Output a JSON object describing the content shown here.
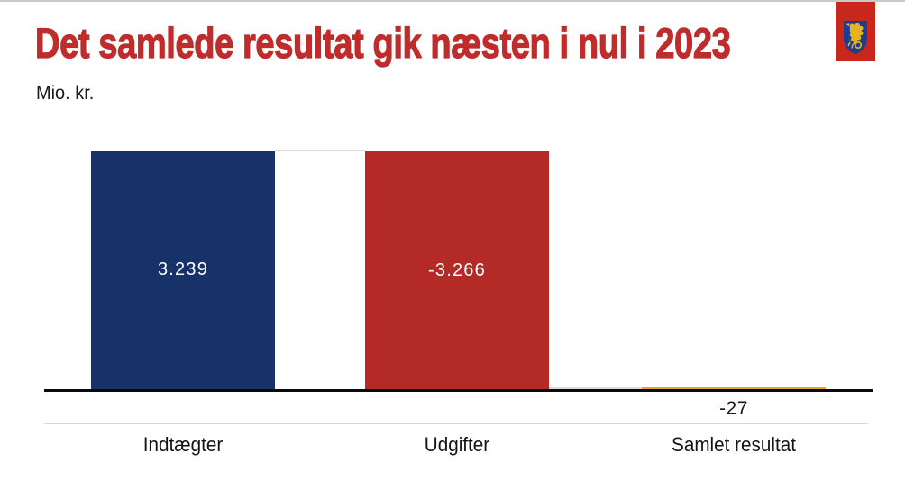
{
  "page": {
    "top_border_color": "#c9c9c9",
    "background_color": "#ffffff"
  },
  "header": {
    "logo": {
      "name": "municipal-coat-of-arms",
      "banner_color": "#c8271b",
      "shield_color": "#1e3d8f",
      "griffin_color": "#e7b41e"
    }
  },
  "chart_data": {
    "type": "waterfall",
    "title": "Det samlede resultat gik næsten i nul i 2023",
    "title_color": "#bf2c2b",
    "unit_label": "Mio. kr.",
    "categories": [
      "Indtægter",
      "Udgifter",
      "Samlet resultat"
    ],
    "values": [
      3239,
      -3266,
      -27
    ],
    "value_labels": [
      "3.239",
      "-3.266",
      "-27"
    ],
    "bar_roles": [
      "increase",
      "decrease",
      "total"
    ],
    "bar_colors": [
      "#163269",
      "#b32a26",
      "#e9a51d"
    ],
    "connector_color": "#dcdcdc",
    "axis_color": "#0a0a0a",
    "label_divider_color": "#d6d6d6",
    "baseline": 0,
    "ylim": [
      -27,
      3266
    ],
    "grid": false,
    "legend": false
  }
}
